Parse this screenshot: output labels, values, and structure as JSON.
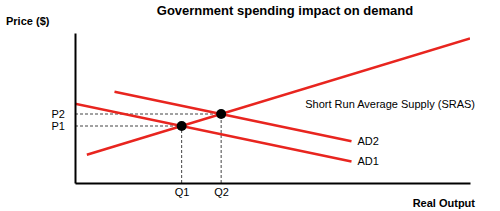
{
  "chart_data": {
    "type": "line",
    "title": "Government spending impact on demand",
    "x_label": "Real Output",
    "y_label": "Price ($)",
    "xlim": [
      0,
      100
    ],
    "ylim": [
      0,
      100
    ],
    "xticks": [
      {
        "value": 27,
        "label": "Q1"
      },
      {
        "value": 37,
        "label": "Q2"
      }
    ],
    "yticks": [
      {
        "value": 38,
        "label": "P1"
      },
      {
        "value": 46,
        "label": "P2"
      }
    ],
    "grid": false,
    "series": [
      {
        "name": "Short Run Average Supply (SRAS)",
        "color": "#e8251f",
        "line_style": "solid",
        "x": [
          3,
          100
        ],
        "values": [
          18.8,
          96.4
        ]
      },
      {
        "name": "AD1",
        "color": "#e8251f",
        "line_style": "solid",
        "x": [
          0,
          70
        ],
        "values": [
          52.85,
          14.35
        ]
      },
      {
        "name": "AD2",
        "color": "#e8251f",
        "line_style": "solid",
        "x": [
          10,
          70
        ],
        "values": [
          60.85,
          27.85
        ]
      }
    ]
  }
}
